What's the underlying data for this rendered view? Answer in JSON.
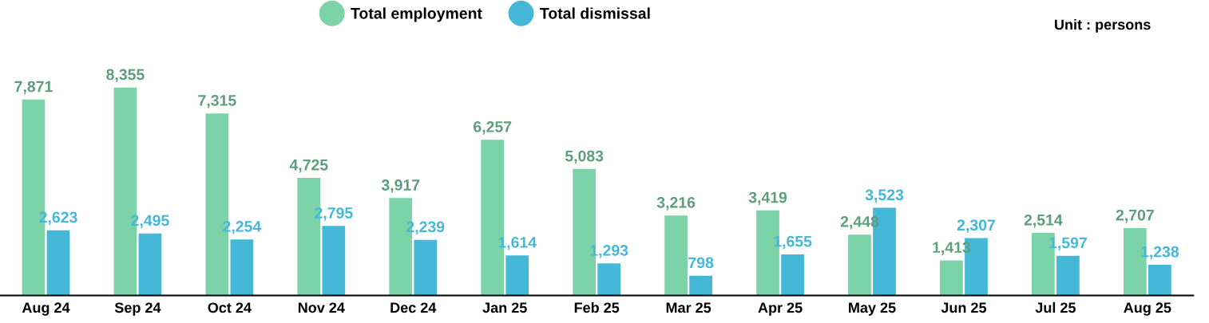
{
  "chart_data": {
    "type": "bar",
    "categories": [
      "Aug 24",
      "Sep 24",
      "Oct 24",
      "Nov 24",
      "Dec 24",
      "Jan 25",
      "Feb 25",
      "Mar 25",
      "Apr 25",
      "May 25",
      "Jun 25",
      "Jul 25",
      "Aug 25"
    ],
    "series": [
      {
        "name": "Total employment",
        "color": "#7dd3a8",
        "values": [
          7871,
          8355,
          7315,
          4725,
          3917,
          6257,
          5083,
          3216,
          3419,
          2448,
          1413,
          2514,
          2707
        ],
        "value_labels": [
          "7,871",
          "8,355",
          "7,315",
          "4,725",
          "3,917",
          "6,257",
          "5,083",
          "3,216",
          "3,419",
          "2,448",
          "1,413",
          "2,514",
          "2,707"
        ]
      },
      {
        "name": "Total dismissal",
        "color": "#45b8d8",
        "values": [
          2623,
          2495,
          2254,
          2795,
          2239,
          1614,
          1293,
          798,
          1655,
          3523,
          2307,
          1597,
          1238
        ],
        "value_labels": [
          "2,623",
          "2,495",
          "2,254",
          "2,795",
          "2,239",
          "1,614",
          "1,293",
          "798",
          "1,655",
          "3,523",
          "2,307",
          "1,597",
          "1,238"
        ]
      }
    ],
    "legend": "top",
    "marker": "circle",
    "grid": false,
    "annotations": [
      "Unit : persons"
    ]
  }
}
